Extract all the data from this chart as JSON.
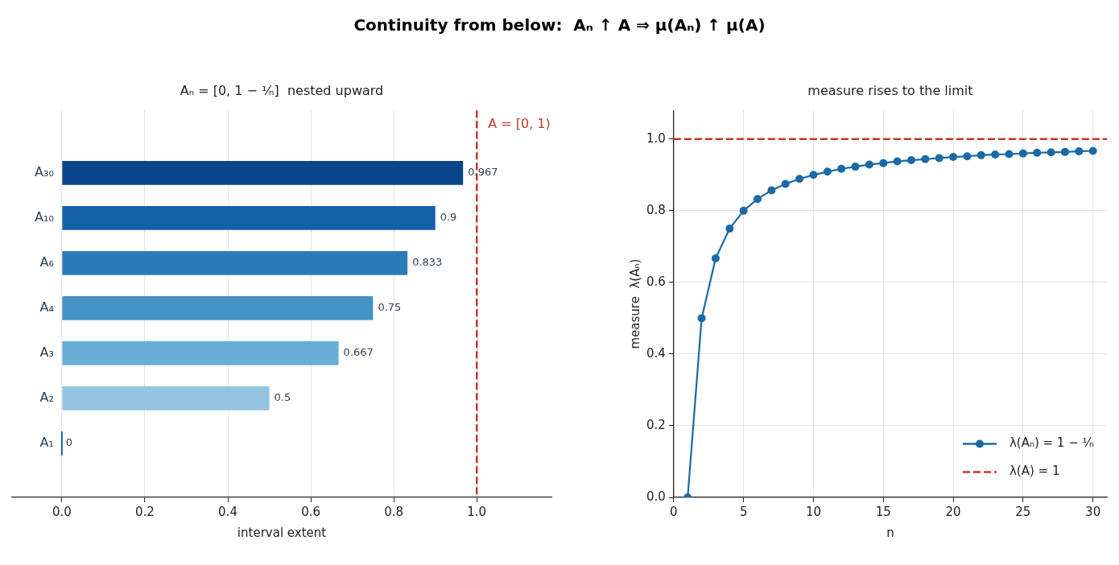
{
  "chart_data": [
    {
      "type": "other",
      "title": "Continuity from below:  Aₙ ↑ A ⇒ μ(Aₙ) ↑ μ(A)"
    },
    {
      "type": "bar",
      "orientation": "horizontal",
      "title": "Aₙ = [0, 1 − ¹⁄ₙ]  nested upward",
      "xlabel": "interval extent",
      "categories": [
        "A₃₀",
        "A₁₀",
        "A₆",
        "A₄",
        "A₃",
        "A₂",
        "A₁"
      ],
      "values": [
        0.967,
        0.9,
        0.833,
        0.75,
        0.667,
        0.5,
        0
      ],
      "colors": [
        "#0a4589",
        "#1461a8",
        "#2b7bba",
        "#4494c7",
        "#6aaed6",
        "#94c4df",
        "#1a5fa3"
      ],
      "xlim": [
        -0.12,
        1.18
      ],
      "xticks": [
        {
          "value": 0,
          "label": "0.0"
        },
        0.2,
        0.4,
        0.6,
        0.8,
        {
          "value": 1,
          "label": "1.0"
        }
      ],
      "grid": "x",
      "data_labels": true,
      "ref_lines": [
        {
          "axis": "x",
          "value": 1,
          "label": "A = [0, 1)",
          "color": "#c0392b",
          "line_style": "dashed"
        }
      ]
    },
    {
      "type": "line",
      "title": "measure rises to the limit",
      "xlabel": "n",
      "ylabel": "measure  λ(Aₙ)",
      "x": [
        1,
        2,
        3,
        4,
        5,
        6,
        7,
        8,
        9,
        10,
        11,
        12,
        13,
        14,
        15,
        16,
        17,
        18,
        19,
        20,
        21,
        22,
        23,
        24,
        25,
        26,
        27,
        28,
        29,
        30
      ],
      "series": [
        {
          "name": "λ(Aₙ) = 1 − ¹⁄ₙ",
          "color": "#1b69a6",
          "values": [
            0,
            0.5,
            0.667,
            0.75,
            0.8,
            0.833,
            0.857,
            0.875,
            0.889,
            0.9,
            0.909,
            0.917,
            0.923,
            0.929,
            0.933,
            0.938,
            0.941,
            0.944,
            0.947,
            0.95,
            0.952,
            0.955,
            0.957,
            0.958,
            0.96,
            0.962,
            0.963,
            0.964,
            0.966,
            0.967
          ]
        }
      ],
      "xlim": [
        0,
        31
      ],
      "xticks": [
        0,
        5,
        10,
        15,
        20,
        25,
        30
      ],
      "ylim": [
        0,
        1.08
      ],
      "yticks": [
        {
          "value": 0,
          "label": "0.0"
        },
        0.2,
        0.4,
        0.6,
        0.8,
        {
          "value": 1,
          "label": "1.0"
        }
      ],
      "grid": true,
      "legend": "bottom right",
      "marker": "circle",
      "ref_lines": [
        {
          "axis": "y",
          "value": 1,
          "label": "λ(A) = 1",
          "color": "#c0392b",
          "line_style": "dashed"
        }
      ]
    }
  ]
}
